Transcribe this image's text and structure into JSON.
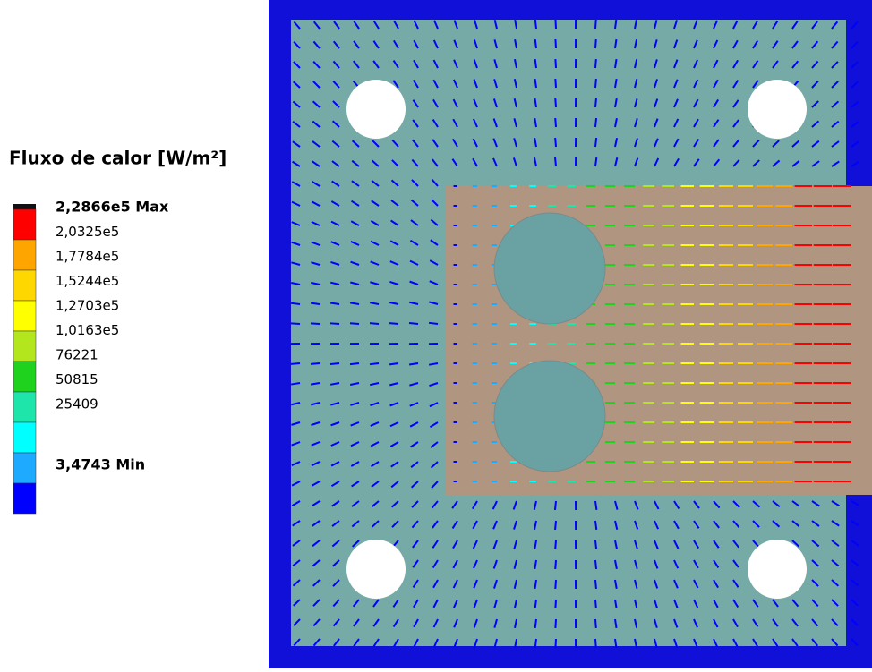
{
  "legend": {
    "title": "Fluxo de calor [W/m²]",
    "labels": [
      "2,2866e5 Max",
      "2,0325e5",
      "1,7784e5",
      "1,5244e5",
      "1,2703e5",
      "1,0163e5",
      "76221",
      "50815",
      "25409",
      "3,4743 Min"
    ],
    "colors": [
      "#ff0000",
      "#ffa500",
      "#ffd700",
      "#ffff00",
      "#b4e61e",
      "#1ed21e",
      "#1ee6aa",
      "#00ffff",
      "#1eaaff",
      "#0000ff"
    ]
  }
}
